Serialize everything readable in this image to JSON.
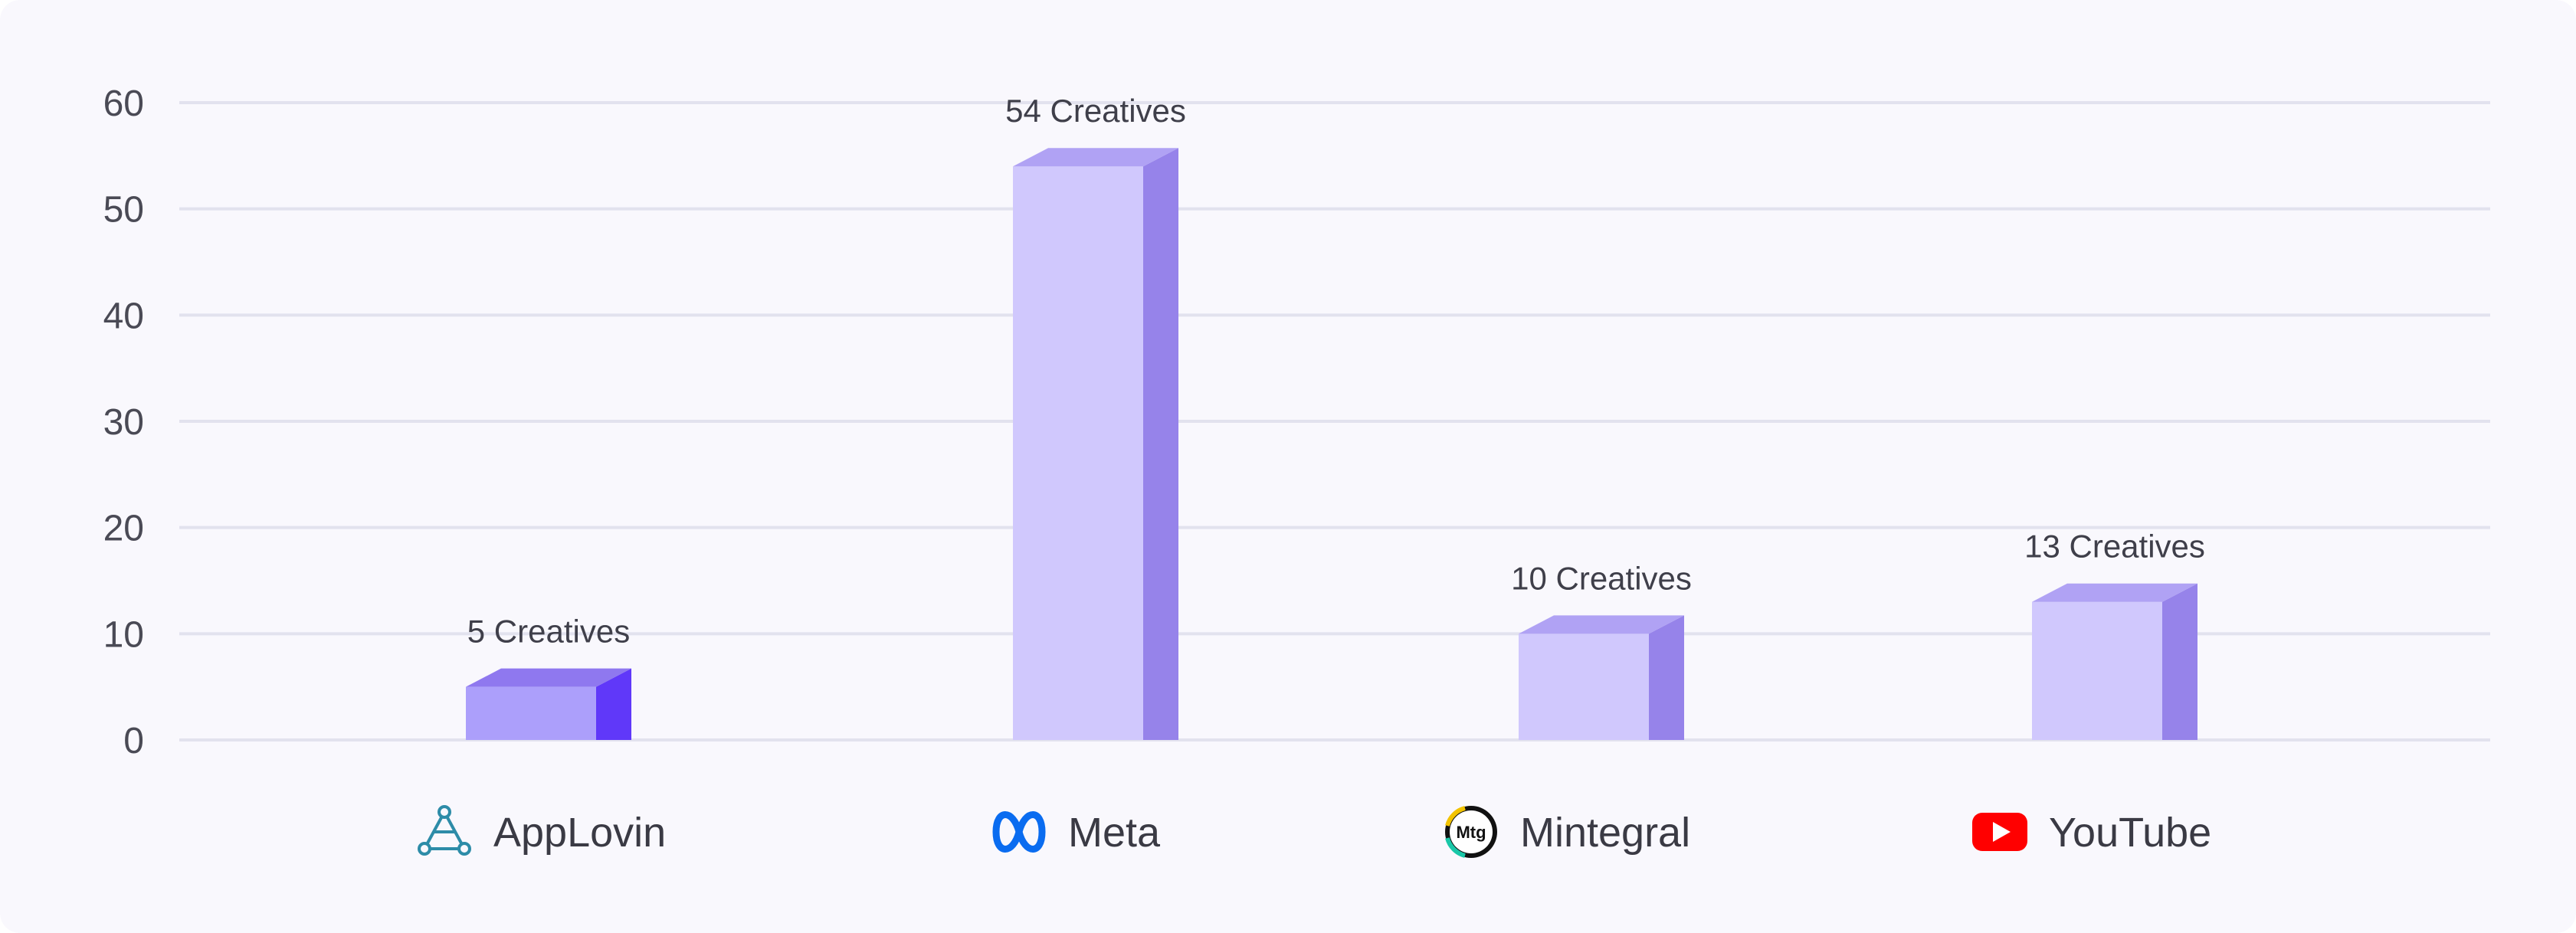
{
  "chart_data": {
    "type": "bar",
    "categories": [
      "AppLovin",
      "Meta",
      "Mintegral",
      "YouTube"
    ],
    "values": [
      5,
      54,
      10,
      13
    ],
    "data_labels": [
      "5 Creatives",
      "54 Creatives",
      "10 Creatives",
      "13 Creatives"
    ],
    "title": "",
    "xlabel": "",
    "ylabel": "",
    "ylim": [
      0,
      60
    ],
    "yticks": [
      0,
      10,
      20,
      30,
      40,
      50,
      60
    ],
    "grid": true,
    "legend": "none",
    "category_icons": [
      "applovin-logo-icon",
      "meta-logo-icon",
      "mintegral-logo-icon",
      "youtube-logo-icon"
    ],
    "colors": {
      "bar_front": "#d0c8fd",
      "bar_side": "#9683ea",
      "bar_top": "#b0a2f4",
      "highlight_front": "#ac9ffb",
      "highlight_side": "#6038f9",
      "highlight_top": "#8f78ef",
      "grid": "#e2e2ee",
      "applovin": "#2d8ca8",
      "meta": "#0a6cf0",
      "youtube": "#ff0000"
    },
    "highlighted_category": "AppLovin"
  }
}
